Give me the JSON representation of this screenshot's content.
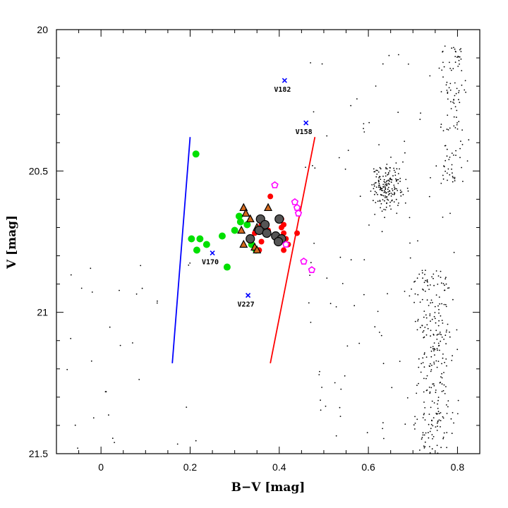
{
  "chart_data": {
    "type": "scatter",
    "title": "",
    "xlabel": "B−V [mag]",
    "ylabel": "V [mag]",
    "xlim": [
      -0.1,
      0.85
    ],
    "ylim": [
      21.5,
      20.0
    ],
    "y_inverted": true,
    "x_ticks": [
      0,
      0.2,
      0.4,
      0.6,
      0.8
    ],
    "x_tick_labels": [
      "0",
      "0.2",
      "0.4",
      "0.6",
      "0.8"
    ],
    "y_ticks": [
      20,
      20.5,
      21,
      21.5
    ],
    "y_tick_labels": [
      "20",
      "20.5",
      "21",
      "21.5"
    ],
    "grid": false,
    "series": [
      {
        "marker": "green-circle",
        "color": "#00e000",
        "points": [
          [
            0.213,
            20.44
          ],
          [
            0.203,
            20.74
          ],
          [
            0.222,
            20.74
          ],
          [
            0.215,
            20.78
          ],
          [
            0.237,
            20.76
          ],
          [
            0.272,
            20.73
          ],
          [
            0.283,
            20.84
          ],
          [
            0.3,
            20.71
          ],
          [
            0.31,
            20.66
          ],
          [
            0.313,
            20.68
          ],
          [
            0.328,
            20.69
          ],
          [
            0.338,
            20.76
          ],
          [
            0.348,
            20.78
          ]
        ]
      },
      {
        "marker": "red-circle",
        "color": "#ff0000",
        "points": [
          [
            0.38,
            20.59
          ],
          [
            0.405,
            20.67
          ],
          [
            0.41,
            20.69
          ],
          [
            0.405,
            20.7
          ],
          [
            0.41,
            20.72
          ],
          [
            0.4,
            20.74
          ],
          [
            0.415,
            20.74
          ],
          [
            0.42,
            20.76
          ],
          [
            0.41,
            20.78
          ],
          [
            0.44,
            20.72
          ],
          [
            0.36,
            20.75
          ],
          [
            0.355,
            20.78
          ],
          [
            0.345,
            20.72
          ],
          [
            0.36,
            20.69
          ],
          [
            0.375,
            20.71
          ]
        ]
      },
      {
        "marker": "brown-triangle",
        "color": "#d2691e",
        "points": [
          [
            0.32,
            20.63
          ],
          [
            0.325,
            20.65
          ],
          [
            0.375,
            20.63
          ],
          [
            0.315,
            20.71
          ],
          [
            0.335,
            20.67
          ],
          [
            0.35,
            20.7
          ],
          [
            0.32,
            20.76
          ],
          [
            0.345,
            20.77
          ],
          [
            0.35,
            20.78
          ]
        ]
      },
      {
        "marker": "grey-circle",
        "color": "#555555",
        "points": [
          [
            0.358,
            20.67
          ],
          [
            0.368,
            20.69
          ],
          [
            0.4,
            20.67
          ],
          [
            0.355,
            20.71
          ],
          [
            0.372,
            20.72
          ],
          [
            0.392,
            20.73
          ],
          [
            0.335,
            20.74
          ],
          [
            0.405,
            20.74
          ],
          [
            0.398,
            20.75
          ]
        ]
      },
      {
        "marker": "magenta-pentagon",
        "color": "#ff00ff",
        "points": [
          [
            0.39,
            20.55
          ],
          [
            0.435,
            20.61
          ],
          [
            0.44,
            20.63
          ],
          [
            0.443,
            20.65
          ],
          [
            0.455,
            20.82
          ],
          [
            0.473,
            20.85
          ],
          [
            0.415,
            20.76
          ]
        ]
      },
      {
        "marker": "blue-cross",
        "color": "#0000ff",
        "points": [
          {
            "x": 0.412,
            "y": 20.18,
            "label": "V182"
          },
          {
            "x": 0.46,
            "y": 20.33,
            "label": "V158"
          },
          {
            "x": 0.25,
            "y": 20.79,
            "label": "V170"
          },
          {
            "x": 0.33,
            "y": 20.94,
            "label": "V227"
          }
        ]
      }
    ],
    "lines": [
      {
        "color": "#0000ff",
        "x": [
          0.16,
          0.2
        ],
        "y": [
          21.18,
          20.38
        ]
      },
      {
        "color": "#ff0000",
        "x": [
          0.38,
          0.48
        ],
        "y": [
          21.18,
          20.38
        ]
      }
    ]
  }
}
